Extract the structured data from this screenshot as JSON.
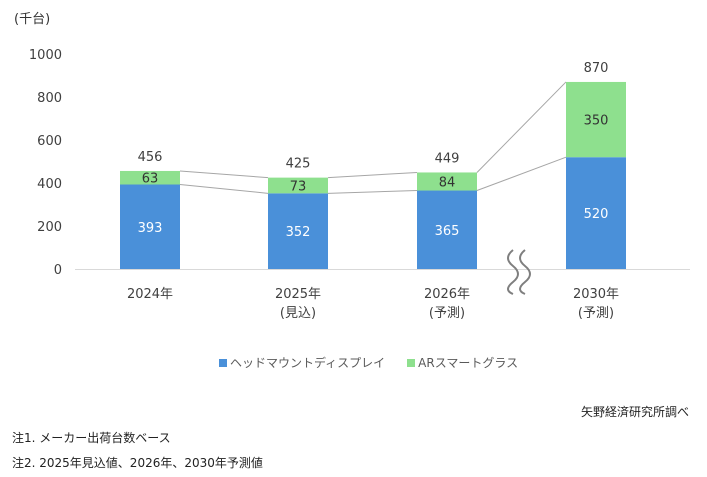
{
  "chart_data": {
    "type": "bar",
    "stacked": true,
    "unit_label": "(千台)",
    "categories": [
      [
        "2024年"
      ],
      [
        "2025年",
        "(見込)"
      ],
      [
        "2026年",
        "(予測)"
      ],
      [
        "2030年",
        "(予測)"
      ]
    ],
    "series": [
      {
        "name": "ヘッドマウントディスプレイ",
        "color": "#4a90d9",
        "values": [
          393,
          352,
          365,
          520
        ]
      },
      {
        "name": "ARスマートグラス",
        "color": "#8ee08e",
        "values": [
          63,
          73,
          84,
          350
        ]
      }
    ],
    "totals": [
      456,
      425,
      449,
      870
    ],
    "ylim": [
      0,
      1000
    ],
    "yticks": [
      0,
      200,
      400,
      600,
      800,
      1000
    ],
    "grid": false,
    "axis_break": "between 2026 and 2030",
    "legend_position": "bottom"
  },
  "source": "矢野経済研究所調べ",
  "notes": [
    "注1. メーカー出荷台数ベース",
    "注2. 2025年見込値、2026年、2030年予測値"
  ]
}
